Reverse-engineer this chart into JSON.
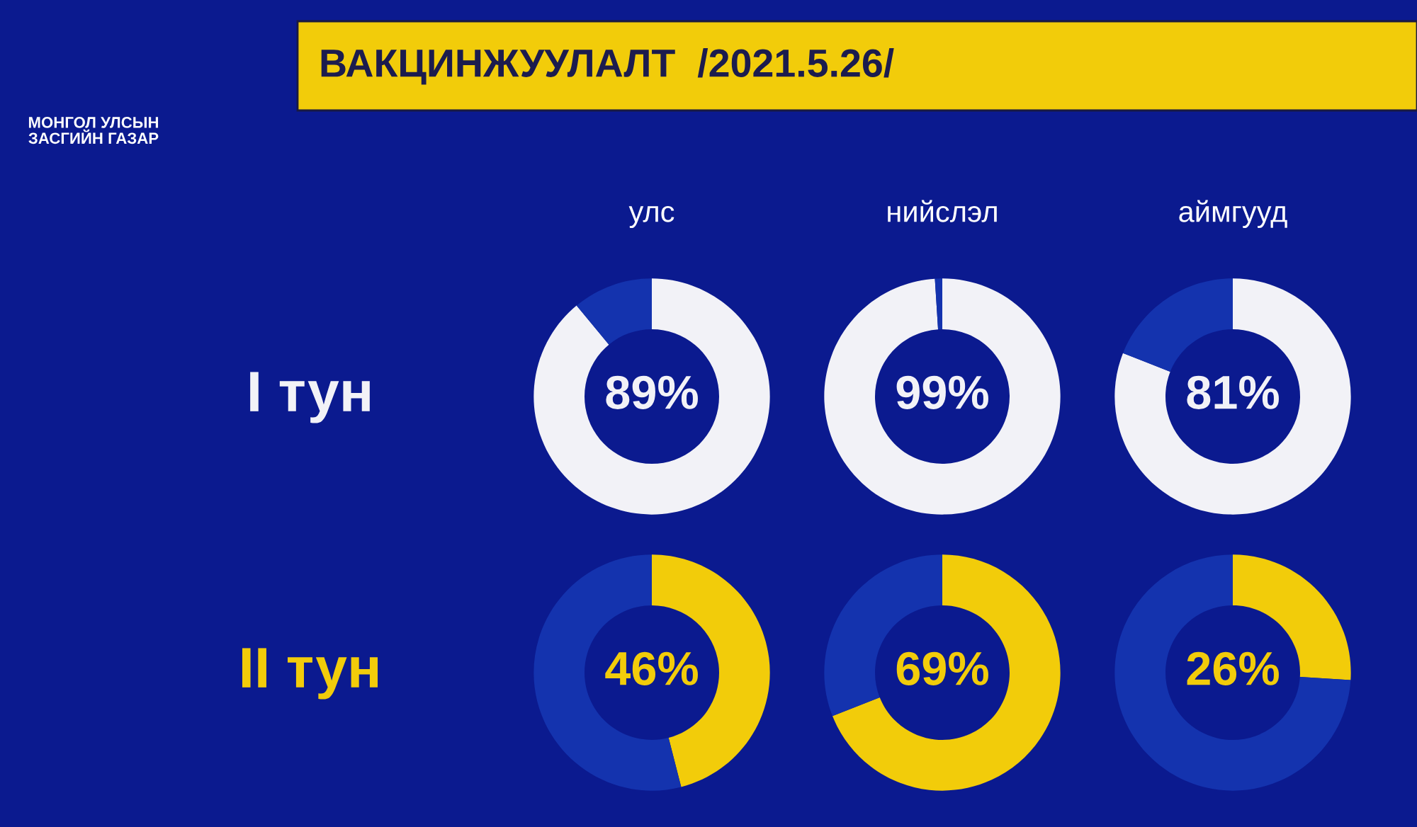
{
  "chart_data": [
    {
      "type": "other",
      "title": "ВАКЦИНЖУУЛАЛТ  /2021.5.26/",
      "annotations": [
        "МОНГОЛ УЛСЫН\nЗАСГИЙН ГАЗАР"
      ]
    },
    {
      "type": "donut",
      "title": "улс",
      "ylabel": "I тун",
      "categories": [
        null,
        null
      ],
      "values": [
        89,
        11
      ],
      "colors": [
        "#f2f2f7",
        "#1433ae"
      ],
      "value_labels": [
        "89%",
        null
      ]
    },
    {
      "type": "donut",
      "title": "нийслэл",
      "categories": [
        null,
        null
      ],
      "values": [
        99,
        1
      ],
      "colors": [
        "#f2f2f7",
        "#1433ae"
      ],
      "value_labels": [
        "99%",
        null
      ]
    },
    {
      "type": "donut",
      "title": "аймгууд",
      "categories": [
        null,
        null
      ],
      "values": [
        81,
        19
      ],
      "colors": [
        "#f2f2f7",
        "#1433ae"
      ],
      "value_labels": [
        "81%",
        null
      ]
    },
    {
      "type": "donut",
      "ylabel": "II тун",
      "categories": [
        null,
        null
      ],
      "values": [
        46,
        54
      ],
      "colors": [
        "#f2cc0a",
        "#1433ae"
      ],
      "value_labels": [
        "46%",
        null
      ]
    },
    {
      "type": "donut",
      "categories": [
        null,
        null
      ],
      "values": [
        69,
        31
      ],
      "colors": [
        "#f2cc0a",
        "#1433ae"
      ],
      "value_labels": [
        "69%",
        null
      ]
    },
    {
      "type": "donut",
      "categories": [
        null,
        null
      ],
      "values": [
        26,
        74
      ],
      "colors": [
        "#f2cc0a",
        "#1433ae"
      ],
      "value_labels": [
        "26%",
        null
      ]
    }
  ]
}
